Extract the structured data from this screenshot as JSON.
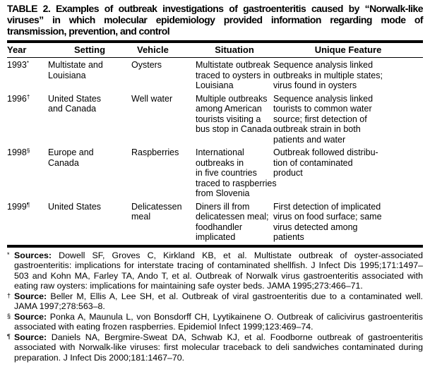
{
  "title_lines": [
    "TABLE 2. Examples of outbreak investigations of gastroenteritis caused by “Norwalk-like",
    "viruses” in which molecular epidemiology provided information regarding mode of",
    "transmission, prevention, and control"
  ],
  "table": {
    "headers": [
      "Year",
      "Setting",
      "Vehicle",
      "Situation",
      "Unique Feature"
    ],
    "rows": [
      {
        "year": "1993",
        "mark": "*",
        "setting": [
          "Multistate and",
          "Louisiana"
        ],
        "vehicle": [
          "Oysters"
        ],
        "situation": [
          "Multistate outbreak",
          "traced to oysters in",
          "Louisiana"
        ],
        "feature": [
          "Sequence analysis linked",
          "outbreaks in multiple states;",
          "virus found in oysters"
        ]
      },
      {
        "year": "1996",
        "mark": "†",
        "setting": [
          "United States",
          "and Canada"
        ],
        "vehicle": [
          "Well water"
        ],
        "situation": [
          "Multiple outbreaks",
          "among American",
          "tourists visiting a",
          "bus stop in Canada"
        ],
        "feature": [
          "Sequence analysis linked",
          "tourists to common water",
          "source; first detection of",
          "outbreak strain in both",
          "patients and water"
        ]
      },
      {
        "year": "1998",
        "mark": "§",
        "setting": [
          "Europe and",
          "Canada"
        ],
        "vehicle": [
          "Raspberries"
        ],
        "situation": [
          "International",
          "outbreaks in",
          "in five countries",
          "traced to raspberries",
          "from Slovenia"
        ],
        "feature": [
          "Outbreak followed distribu-",
          "tion of contaminated",
          "product"
        ]
      },
      {
        "year": "1999",
        "mark": "¶",
        "setting": [
          "United States"
        ],
        "vehicle": [
          "Delicatessen",
          "meal"
        ],
        "situation": [
          "Diners ill from",
          "delicatessen meal;",
          "foodhandler",
          "implicated"
        ],
        "feature": [
          "First detection of implicated",
          "virus on food surface; same",
          "virus detected among",
          "patients"
        ]
      }
    ]
  },
  "footnotes": [
    {
      "mark": "*",
      "label": "Sources:",
      "text": " Dowell SF, Groves C, Kirkland KB, et al. Multistate outbreak of oyster-associated gastroenteritis: implications for interstate tracing of contaminated shellfish. J Infect Dis 1995;171:1497–503 and Kohn MA, Farley TA, Ando T, et al. Outbreak of Norwalk virus gastroenteritis associated with eating raw oysters: implications for maintaining safe oyster beds. JAMA 1995;273:466–71."
    },
    {
      "mark": "†",
      "label": "Source:",
      "text": " Beller M, Ellis A, Lee SH, et al. Outbreak of viral gastroenteritis due to a contaminated well. JAMA 1997;278:563–8."
    },
    {
      "mark": "§",
      "label": "Source:",
      "text": " Ponka A, Maunula L, von Bonsdorff CH, Lyytikainene O. Outbreak of calicivirus gastroenteritis associated with eating frozen raspberries. Epidemiol Infect 1999;123:469–74."
    },
    {
      "mark": "¶",
      "label": "Source:",
      "text": " Daniels NA, Bergmire-Sweat DA, Schwab KJ, et al. Foodborne outbreak of gastroenteritis associated with Norwalk-like viruses: first molecular traceback to deli sandwiches contaminated during preparation. J Infect Dis 2000;181:1467–70."
    }
  ]
}
